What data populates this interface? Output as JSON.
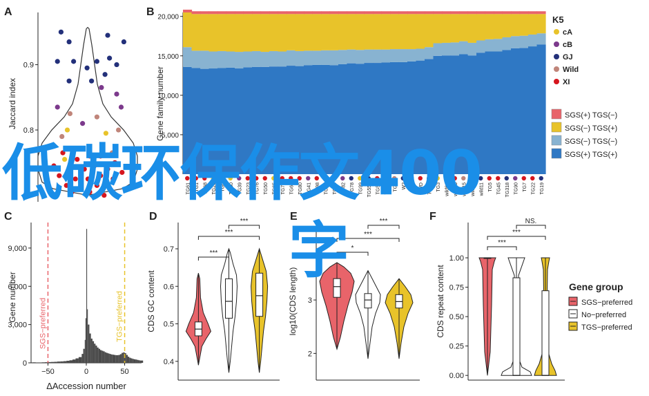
{
  "panels": {
    "A": "A",
    "B": "B",
    "C": "C",
    "D": "D",
    "E": "E",
    "F": "F"
  },
  "watermark": {
    "line1": "低碳环保作文400",
    "line2": "字"
  },
  "chart_data": [
    {
      "panel": "A",
      "type": "scatter",
      "ylabel": "Jaccard index",
      "yticks": [
        0.8,
        0.9
      ],
      "ytick_labels": [
        "0.8",
        "0.9"
      ],
      "ylim": [
        0.69,
        0.98
      ],
      "points": [
        [
          0.18,
          0.95,
          "GJ"
        ],
        [
          0.27,
          0.935,
          "GJ"
        ],
        [
          0.7,
          0.945,
          "GJ"
        ],
        [
          0.88,
          0.935,
          "GJ"
        ],
        [
          0.14,
          0.905,
          "GJ"
        ],
        [
          0.32,
          0.905,
          "GJ"
        ],
        [
          0.47,
          0.895,
          "GJ"
        ],
        [
          0.58,
          0.905,
          "GJ"
        ],
        [
          0.72,
          0.91,
          "GJ"
        ],
        [
          0.8,
          0.9,
          "GJ"
        ],
        [
          0.27,
          0.875,
          "GJ"
        ],
        [
          0.52,
          0.875,
          "GJ"
        ],
        [
          0.67,
          0.885,
          "GJ"
        ],
        [
          0.63,
          0.865,
          "cB"
        ],
        [
          0.8,
          0.855,
          "cB"
        ],
        [
          0.85,
          0.835,
          "cB"
        ],
        [
          0.14,
          0.835,
          "cB"
        ],
        [
          0.28,
          0.825,
          "Wild"
        ],
        [
          0.58,
          0.82,
          "Wild"
        ],
        [
          0.82,
          0.8,
          "Wild"
        ],
        [
          0.19,
          0.79,
          "Wild"
        ],
        [
          0.75,
          0.765,
          "Wild"
        ],
        [
          0.42,
          0.81,
          "cB"
        ],
        [
          0.25,
          0.8,
          "cA"
        ],
        [
          0.68,
          0.795,
          "cA"
        ],
        [
          0.22,
          0.755,
          "cA"
        ],
        [
          0.2,
          0.765,
          "XI"
        ],
        [
          0.36,
          0.755,
          "XI"
        ],
        [
          0.5,
          0.76,
          "XI"
        ],
        [
          0.62,
          0.76,
          "XI"
        ],
        [
          0.78,
          0.75,
          "XI"
        ],
        [
          0.1,
          0.745,
          "XI"
        ],
        [
          0.28,
          0.74,
          "XI"
        ],
        [
          0.44,
          0.74,
          "XI"
        ],
        [
          0.55,
          0.745,
          "XI"
        ],
        [
          0.7,
          0.74,
          "XI"
        ],
        [
          0.86,
          0.735,
          "XI"
        ],
        [
          0.16,
          0.73,
          "XI"
        ],
        [
          0.34,
          0.725,
          "XI"
        ],
        [
          0.48,
          0.725,
          "XI"
        ],
        [
          0.62,
          0.73,
          "XI"
        ],
        [
          0.76,
          0.725,
          "XI"
        ],
        [
          0.24,
          0.715,
          "XI"
        ],
        [
          0.4,
          0.71,
          "XI"
        ],
        [
          0.58,
          0.715,
          "XI"
        ],
        [
          0.72,
          0.71,
          "XI"
        ],
        [
          0.3,
          0.705,
          "XI"
        ],
        [
          0.5,
          0.705,
          "XI"
        ],
        [
          0.66,
          0.7,
          "XI"
        ]
      ]
    },
    {
      "panel": "B",
      "type": "bar",
      "stacked": true,
      "ylabel": "Gene family number",
      "ylim": [
        0,
        20500
      ],
      "yticks": [
        5000,
        10000,
        15000,
        20000
      ],
      "ytick_labels": [
        "5,000",
        "10,000",
        "15,000",
        "20,000"
      ],
      "x_labels": [
        "TG61",
        "TG1",
        "TG68",
        "TG20",
        "TG6",
        "TG30",
        "TG39",
        "TG23",
        "TG76",
        "TG50",
        "TG65",
        "TG75",
        "TG66",
        "TG80",
        "TG41",
        "TG98",
        "TG87",
        "TG90",
        "TG82",
        "TG78",
        "TG99",
        "TG550",
        "TG57",
        "TG81",
        "TG2",
        "W2",
        "TG9",
        "WD",
        "TG13",
        "TG3",
        "wild63",
        "wild75",
        "wild15",
        "wild27",
        "wild11",
        "TG5",
        "TG45",
        "TG318",
        "TG90",
        "TG7",
        "TG22",
        "TG19"
      ],
      "x_colors": [
        "XI",
        "XI",
        "XI",
        "cA",
        "XI",
        "cA",
        "cB",
        "XI",
        "XI",
        "XI",
        "cA",
        "XI",
        "XI",
        "XI",
        "cB",
        "XI",
        "XI",
        "XI",
        "cB",
        "GJ",
        "cA",
        "GJ",
        "XI",
        "cA",
        "Wild",
        "GJ",
        "GJ",
        "XI",
        "GJ",
        "cA",
        "Wild",
        "XI",
        "Wild",
        "GJ",
        "GJ",
        "XI",
        "XI",
        "GJ",
        "cB",
        "XI",
        "XI",
        "GJ"
      ],
      "series": [
        {
          "name": "SGS(+) TGS(+)",
          "color": "#2f78c4",
          "values": [
            13600,
            13450,
            13350,
            13400,
            13450,
            13500,
            13400,
            13550,
            13600,
            13600,
            13650,
            13650,
            13750,
            13700,
            13800,
            13850,
            13850,
            13800,
            13950,
            14050,
            14000,
            14100,
            14100,
            14150,
            14200,
            14200,
            14300,
            14400,
            14600,
            15000,
            15050,
            15050,
            15200,
            15050,
            15400,
            15550,
            15550,
            15750,
            15950,
            16000,
            16200,
            16450
          ]
        },
        {
          "name": "SGS(−) TGS(−)",
          "color": "#88b3d1",
          "values": [
            2500,
            2200,
            2300,
            2150,
            2150,
            2050,
            2100,
            2000,
            2000,
            1900,
            1950,
            1900,
            1950,
            1900,
            1850,
            1800,
            1850,
            1900,
            1800,
            1750,
            1750,
            1700,
            1700,
            1650,
            1650,
            1650,
            1550,
            1500,
            1500,
            1600,
            1600,
            1650,
            1650,
            1600,
            1550,
            1550,
            1600,
            1600,
            1550,
            1550,
            1500,
            1400
          ]
        },
        {
          "name": "SGS(−) TGS(+)",
          "color": "#e8c32a",
          "values": [
            4400,
            4650,
            4650,
            4750,
            4700,
            4750,
            4800,
            4750,
            4700,
            4800,
            4700,
            4750,
            4600,
            4700,
            4650,
            4650,
            4600,
            4600,
            4550,
            4500,
            4550,
            4500,
            4500,
            4500,
            4450,
            4450,
            4450,
            4400,
            4200,
            3700,
            3650,
            3600,
            3450,
            3650,
            3350,
            3200,
            3150,
            2950,
            2800,
            2750,
            2600,
            2450
          ]
        },
        {
          "name": "SGS(+) TGS(−)",
          "color": "#e8646a",
          "values": [
            350,
            350,
            350,
            350,
            350,
            350,
            350,
            350,
            350,
            350,
            350,
            350,
            350,
            350,
            350,
            350,
            350,
            350,
            350,
            350,
            350,
            350,
            350,
            350,
            350,
            350,
            350,
            350,
            350,
            350,
            350,
            350,
            350,
            350,
            350,
            350,
            350,
            350,
            350,
            350,
            350,
            350
          ]
        }
      ],
      "legend_title": "K5",
      "legend_groups": [
        {
          "name": "cA",
          "color": "#e8c32a"
        },
        {
          "name": "cB",
          "color": "#7c3a8c"
        },
        {
          "name": "GJ",
          "color": "#23307a"
        },
        {
          "name": "Wild",
          "color": "#c0857a"
        },
        {
          "name": "XI",
          "color": "#d6161e"
        }
      ]
    },
    {
      "panel": "C",
      "type": "histogram",
      "xlabel": "ΔAccession number",
      "ylabel": "Gene number",
      "xlim": [
        -72,
        72
      ],
      "ylim": [
        0,
        11000
      ],
      "xticks": [
        -50,
        0,
        50
      ],
      "xtick_labels": [
        "−50",
        "0",
        "50"
      ],
      "yticks": [
        0,
        3000,
        6000,
        9000
      ],
      "ytick_labels": [
        "0",
        "3,000",
        "6,000",
        "9,000"
      ],
      "bins": [
        [
          -70,
          40
        ],
        [
          -66,
          30
        ],
        [
          -62,
          30
        ],
        [
          -58,
          40
        ],
        [
          -54,
          50
        ],
        [
          -50,
          60
        ],
        [
          -46,
          70
        ],
        [
          -42,
          80
        ],
        [
          -38,
          100
        ],
        [
          -34,
          110
        ],
        [
          -30,
          130
        ],
        [
          -26,
          160
        ],
        [
          -22,
          200
        ],
        [
          -18,
          260
        ],
        [
          -14,
          350
        ],
        [
          -10,
          450
        ],
        [
          -6,
          700
        ],
        [
          -4,
          1100
        ],
        [
          -2,
          1800
        ],
        [
          -1,
          3500
        ],
        [
          0,
          10500
        ],
        [
          1,
          4200
        ],
        [
          2,
          3000
        ],
        [
          4,
          2300
        ],
        [
          6,
          1900
        ],
        [
          8,
          1700
        ],
        [
          10,
          1500
        ],
        [
          12,
          1350
        ],
        [
          14,
          1200
        ],
        [
          16,
          1100
        ],
        [
          18,
          1000
        ],
        [
          20,
          950
        ],
        [
          22,
          900
        ],
        [
          24,
          830
        ],
        [
          26,
          780
        ],
        [
          28,
          740
        ],
        [
          30,
          700
        ],
        [
          32,
          660
        ],
        [
          34,
          640
        ],
        [
          36,
          620
        ],
        [
          38,
          600
        ],
        [
          40,
          600
        ],
        [
          42,
          620
        ],
        [
          44,
          680
        ],
        [
          46,
          780
        ],
        [
          48,
          820
        ],
        [
          50,
          760
        ],
        [
          52,
          620
        ],
        [
          54,
          480
        ],
        [
          56,
          400
        ],
        [
          58,
          350
        ],
        [
          60,
          310
        ],
        [
          62,
          280
        ],
        [
          64,
          260
        ],
        [
          66,
          230
        ],
        [
          68,
          200
        ],
        [
          70,
          180
        ]
      ],
      "annotations": [
        {
          "text": "SGS−preferred",
          "x": -50,
          "color": "#e8646a"
        },
        {
          "text": "TGS−preferred",
          "x": 50,
          "color": "#e8c32a"
        }
      ]
    },
    {
      "panel": "D",
      "type": "violin",
      "ylabel": "CDS GC content",
      "ylim": [
        0.35,
        0.77
      ],
      "yticks": [
        0.4,
        0.5,
        0.6,
        0.7
      ],
      "ytick_labels": [
        "0.4",
        "0.5",
        "0.6",
        "0.7"
      ],
      "groups": [
        {
          "name": "SGS−preferred",
          "color": "#e8646a",
          "min": 0.39,
          "q1": 0.468,
          "median": 0.486,
          "q3": 0.505,
          "max": 0.635
        },
        {
          "name": "No−preferred",
          "color": "#ffffff",
          "min": 0.37,
          "q1": 0.515,
          "median": 0.56,
          "q3": 0.62,
          "max": 0.7
        },
        {
          "name": "TGS−preferred",
          "color": "#e8c32a",
          "min": 0.37,
          "q1": 0.52,
          "median": 0.575,
          "q3": 0.635,
          "max": 0.7
        }
      ],
      "significance": [
        {
          "from": 0,
          "to": 1,
          "label": "***"
        },
        {
          "from": 0,
          "to": 2,
          "label": "***"
        },
        {
          "from": 1,
          "to": 2,
          "label": "***"
        }
      ]
    },
    {
      "panel": "E",
      "type": "violin",
      "ylabel": "log10(CDS length)",
      "ylim": [
        1.5,
        4.45
      ],
      "yticks": [
        2,
        3
      ],
      "ytick_labels": [
        "2",
        "3"
      ],
      "groups": [
        {
          "name": "SGS−preferred",
          "color": "#e8646a",
          "min": 2.08,
          "q1": 3.05,
          "median": 3.25,
          "q3": 3.4,
          "max": 3.7
        },
        {
          "name": "No−preferred",
          "color": "#ffffff",
          "min": 1.9,
          "q1": 2.85,
          "median": 3.0,
          "q3": 3.12,
          "max": 3.55
        },
        {
          "name": "TGS−preferred",
          "color": "#e8c32a",
          "min": 1.9,
          "q1": 2.85,
          "median": 2.97,
          "q3": 3.1,
          "max": 3.4
        }
      ],
      "significance": [
        {
          "from": 0,
          "to": 1,
          "label": "*"
        },
        {
          "from": 0,
          "to": 2,
          "label": "***"
        },
        {
          "from": 1,
          "to": 2,
          "label": "***"
        }
      ]
    },
    {
      "panel": "F",
      "type": "violin",
      "ylabel": "CDS repeat content",
      "ylim": [
        -0.04,
        1.3
      ],
      "yticks": [
        0,
        0.25,
        0.5,
        0.75,
        1
      ],
      "ytick_labels": [
        "0.00",
        "0.25",
        "0.50",
        "0.75",
        "1.00"
      ],
      "groups": [
        {
          "name": "SGS−preferred",
          "color": "#e8646a",
          "min": 0,
          "q1": 1.0,
          "median": 1.0,
          "q3": 1.0,
          "max": 1.0
        },
        {
          "name": "No−preferred",
          "color": "#ffffff",
          "min": 0,
          "q1": 0.0,
          "median": 0.0,
          "q3": 0.83,
          "max": 1.0
        },
        {
          "name": "TGS−preferred",
          "color": "#e8c32a",
          "min": 0,
          "q1": 0.0,
          "median": 0.0,
          "q3": 0.72,
          "max": 1.0
        }
      ],
      "significance": [
        {
          "from": 0,
          "to": 1,
          "label": "***"
        },
        {
          "from": 0,
          "to": 2,
          "label": "***"
        },
        {
          "from": 1,
          "to": 2,
          "label": "NS."
        }
      ],
      "legend_title": "Gene group"
    }
  ]
}
